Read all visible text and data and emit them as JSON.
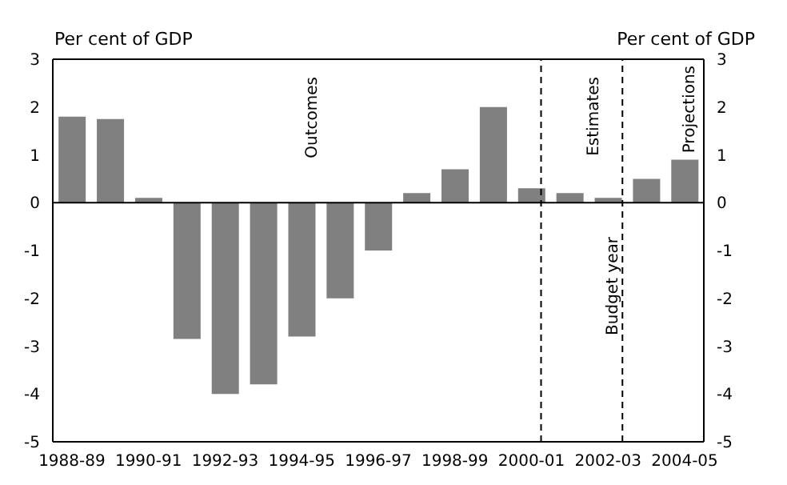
{
  "chart_data": {
    "type": "bar",
    "ylabel": "Per cent of GDP",
    "y2label": "Per cent of GDP",
    "categories": [
      "1988-89",
      null,
      "1990-91",
      null,
      "1992-93",
      null,
      "1994-95",
      null,
      "1996-97",
      null,
      "1998-99",
      null,
      "2000-01",
      null,
      "2002-03",
      null,
      "2004-05"
    ],
    "series": [
      {
        "color": "#808080",
        "values": [
          1.8,
          1.75,
          0.1,
          -2.85,
          -4.0,
          -3.8,
          -2.8,
          -2.0,
          -1.0,
          0.2,
          0.7,
          2.0,
          0.3,
          0.2,
          0.1,
          0.5,
          0.9
        ]
      }
    ],
    "ylim": [
      -5,
      3
    ],
    "yticks": [
      -5,
      -4,
      -3,
      -2,
      -1,
      0,
      1,
      2,
      3
    ],
    "y2lim": [
      -5,
      3
    ],
    "y2ticks": [
      -5,
      -4,
      -3,
      -2,
      -1,
      0,
      1,
      2,
      3
    ],
    "ref_lines": [
      {
        "axis": "x",
        "value": "2000-01",
        "color": "#000000",
        "line_style": "dashed"
      },
      {
        "axis": "x",
        "value": "2002-03",
        "color": "#000000",
        "line_style": "dashed"
      }
    ],
    "annotations": [
      "Outcomes",
      "Estimates",
      "Budget year",
      "Projections"
    ]
  }
}
